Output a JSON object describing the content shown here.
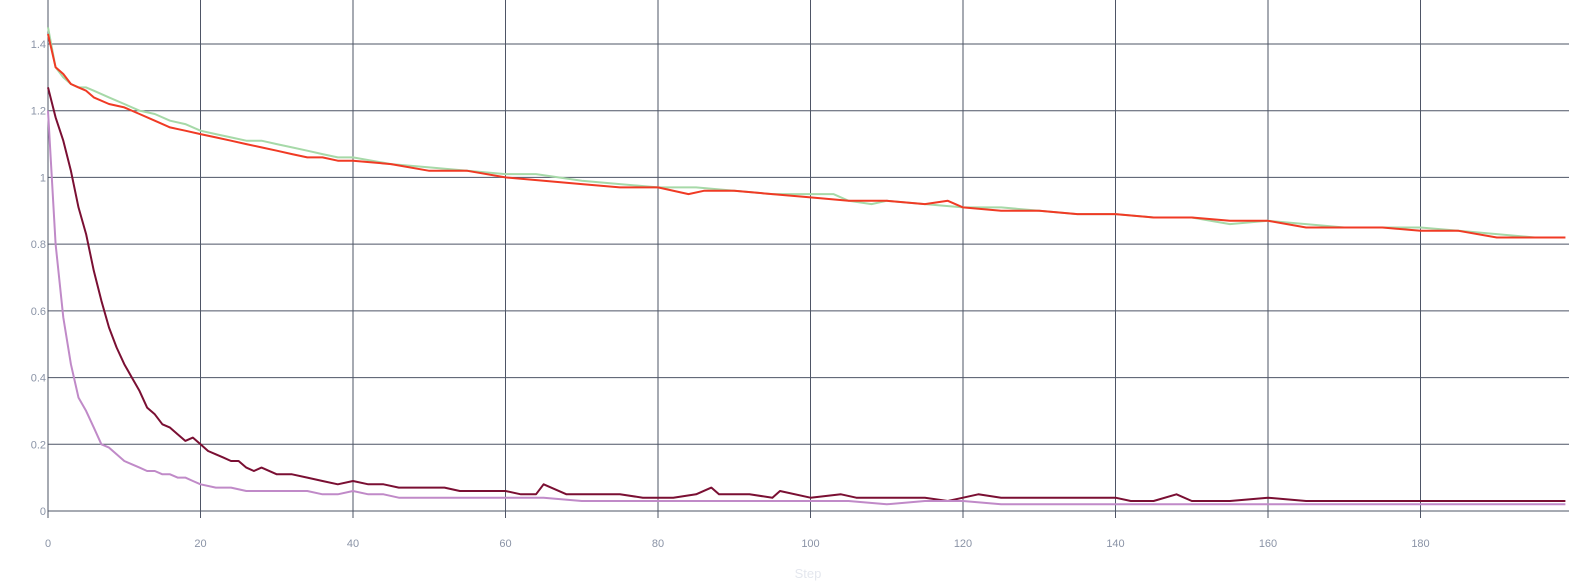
{
  "chart_data": {
    "type": "line",
    "title": "",
    "xlabel": "Step",
    "ylabel": "",
    "xlim": [
      0,
      200
    ],
    "ylim": [
      -0.02,
      1.45
    ],
    "xticks": [
      0,
      20,
      40,
      60,
      80,
      100,
      120,
      140,
      160,
      180
    ],
    "yticks": [
      0,
      0.2,
      0.4,
      0.6,
      0.8,
      1,
      1.2,
      1.4
    ],
    "ytick_labels": [
      "0",
      "0.2",
      "0.4",
      "0.6",
      "0.8",
      "1",
      "1.2",
      "1.4"
    ],
    "grid": true,
    "legend": "none",
    "series": [
      {
        "color": "#a6d9a8",
        "width": 2,
        "x": [
          0,
          1,
          2,
          3,
          4,
          5,
          6,
          8,
          10,
          12,
          14,
          16,
          18,
          20,
          22,
          24,
          26,
          28,
          30,
          32,
          34,
          36,
          38,
          40,
          45,
          50,
          55,
          60,
          64,
          70,
          75,
          80,
          85,
          90,
          95,
          100,
          103,
          105,
          108,
          110,
          115,
          120,
          125,
          130,
          135,
          140,
          145,
          150,
          155,
          160,
          165,
          170,
          175,
          180,
          185,
          190,
          195,
          199
        ],
        "y": [
          1.45,
          1.33,
          1.3,
          1.28,
          1.27,
          1.27,
          1.26,
          1.24,
          1.22,
          1.2,
          1.19,
          1.17,
          1.16,
          1.14,
          1.13,
          1.12,
          1.11,
          1.11,
          1.1,
          1.09,
          1.08,
          1.07,
          1.06,
          1.06,
          1.04,
          1.03,
          1.02,
          1.01,
          1.01,
          0.99,
          0.98,
          0.97,
          0.97,
          0.96,
          0.95,
          0.95,
          0.95,
          0.93,
          0.92,
          0.93,
          0.92,
          0.91,
          0.91,
          0.9,
          0.89,
          0.89,
          0.88,
          0.88,
          0.86,
          0.87,
          0.86,
          0.85,
          0.85,
          0.85,
          0.84,
          0.83,
          0.82,
          0.82
        ]
      },
      {
        "color": "#f03a24",
        "width": 2,
        "x": [
          0,
          1,
          2,
          3,
          4,
          5,
          6,
          8,
          10,
          12,
          14,
          16,
          18,
          20,
          22,
          24,
          26,
          28,
          30,
          32,
          34,
          36,
          38,
          40,
          45,
          50,
          55,
          60,
          65,
          70,
          75,
          80,
          84,
          86,
          90,
          95,
          100,
          105,
          110,
          115,
          118,
          120,
          125,
          130,
          135,
          140,
          145,
          150,
          155,
          160,
          165,
          170,
          175,
          180,
          185,
          190,
          195,
          199
        ],
        "y": [
          1.43,
          1.33,
          1.31,
          1.28,
          1.27,
          1.26,
          1.24,
          1.22,
          1.21,
          1.19,
          1.17,
          1.15,
          1.14,
          1.13,
          1.12,
          1.11,
          1.1,
          1.09,
          1.08,
          1.07,
          1.06,
          1.06,
          1.05,
          1.05,
          1.04,
          1.02,
          1.02,
          1.0,
          0.99,
          0.98,
          0.97,
          0.97,
          0.95,
          0.96,
          0.96,
          0.95,
          0.94,
          0.93,
          0.93,
          0.92,
          0.93,
          0.91,
          0.9,
          0.9,
          0.89,
          0.89,
          0.88,
          0.88,
          0.87,
          0.87,
          0.85,
          0.85,
          0.85,
          0.84,
          0.84,
          0.82,
          0.82,
          0.82
        ]
      },
      {
        "color": "#7a0f33",
        "width": 2,
        "x": [
          0,
          1,
          2,
          3,
          4,
          5,
          6,
          7,
          8,
          9,
          10,
          11,
          12,
          13,
          14,
          15,
          16,
          17,
          18,
          19,
          20,
          21,
          22,
          23,
          24,
          25,
          26,
          27,
          28,
          30,
          32,
          34,
          36,
          38,
          40,
          42,
          44,
          46,
          48,
          50,
          52,
          54,
          56,
          58,
          60,
          62,
          64,
          65,
          68,
          70,
          75,
          78,
          80,
          82,
          85,
          87,
          88,
          90,
          92,
          95,
          96,
          100,
          104,
          106,
          110,
          115,
          118,
          120,
          122,
          125,
          130,
          135,
          140,
          142,
          145,
          148,
          150,
          155,
          160,
          165,
          170,
          175,
          180,
          185,
          190,
          195,
          199
        ],
        "y": [
          1.27,
          1.18,
          1.11,
          1.02,
          0.91,
          0.83,
          0.72,
          0.63,
          0.55,
          0.49,
          0.44,
          0.4,
          0.36,
          0.31,
          0.29,
          0.26,
          0.25,
          0.23,
          0.21,
          0.22,
          0.2,
          0.18,
          0.17,
          0.16,
          0.15,
          0.15,
          0.13,
          0.12,
          0.13,
          0.11,
          0.11,
          0.1,
          0.09,
          0.08,
          0.09,
          0.08,
          0.08,
          0.07,
          0.07,
          0.07,
          0.07,
          0.06,
          0.06,
          0.06,
          0.06,
          0.05,
          0.05,
          0.08,
          0.05,
          0.05,
          0.05,
          0.04,
          0.04,
          0.04,
          0.05,
          0.07,
          0.05,
          0.05,
          0.05,
          0.04,
          0.06,
          0.04,
          0.05,
          0.04,
          0.04,
          0.04,
          0.03,
          0.04,
          0.05,
          0.04,
          0.04,
          0.04,
          0.04,
          0.03,
          0.03,
          0.05,
          0.03,
          0.03,
          0.04,
          0.03,
          0.03,
          0.03,
          0.03,
          0.03,
          0.03,
          0.03,
          0.03
        ]
      },
      {
        "color": "#c08ac8",
        "width": 2,
        "x": [
          0,
          1,
          2,
          3,
          4,
          5,
          6,
          7,
          8,
          9,
          10,
          11,
          12,
          13,
          14,
          15,
          16,
          17,
          18,
          19,
          20,
          22,
          24,
          26,
          28,
          30,
          32,
          34,
          36,
          38,
          40,
          42,
          44,
          46,
          48,
          50,
          55,
          60,
          65,
          70,
          75,
          80,
          85,
          90,
          95,
          100,
          105,
          110,
          115,
          120,
          125,
          130,
          135,
          140,
          145,
          150,
          155,
          160,
          165,
          170,
          175,
          180,
          185,
          190,
          195,
          199
        ],
        "y": [
          1.2,
          0.8,
          0.58,
          0.44,
          0.34,
          0.3,
          0.25,
          0.2,
          0.19,
          0.17,
          0.15,
          0.14,
          0.13,
          0.12,
          0.12,
          0.11,
          0.11,
          0.1,
          0.1,
          0.09,
          0.08,
          0.07,
          0.07,
          0.06,
          0.06,
          0.06,
          0.06,
          0.06,
          0.05,
          0.05,
          0.06,
          0.05,
          0.05,
          0.04,
          0.04,
          0.04,
          0.04,
          0.04,
          0.04,
          0.03,
          0.03,
          0.03,
          0.03,
          0.03,
          0.03,
          0.03,
          0.03,
          0.02,
          0.03,
          0.03,
          0.02,
          0.02,
          0.02,
          0.02,
          0.02,
          0.02,
          0.02,
          0.02,
          0.02,
          0.02,
          0.02,
          0.02,
          0.02,
          0.02,
          0.02,
          0.02
        ]
      }
    ]
  }
}
